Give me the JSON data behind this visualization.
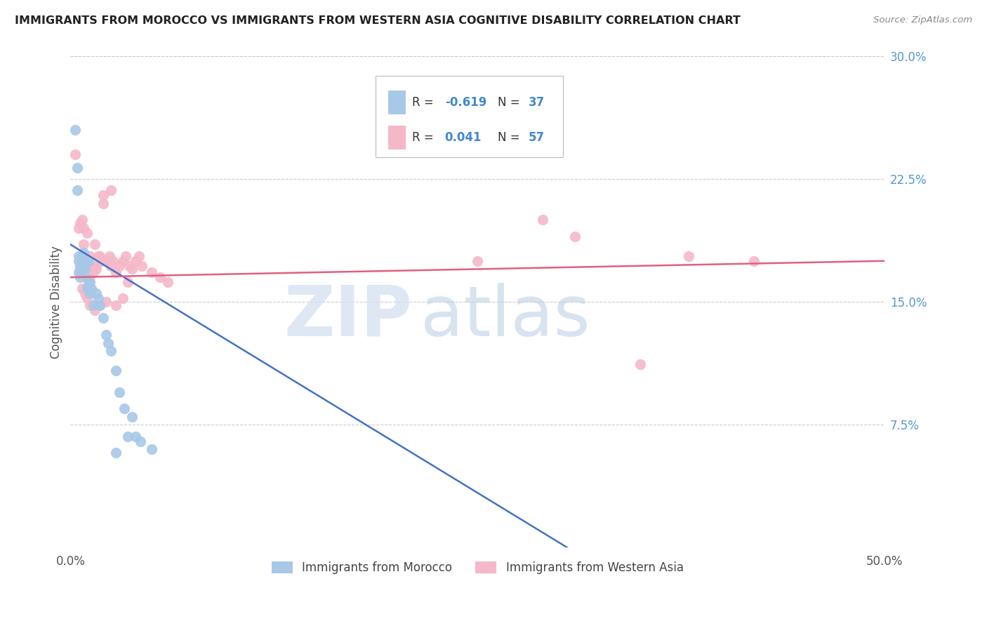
{
  "title": "IMMIGRANTS FROM MOROCCO VS IMMIGRANTS FROM WESTERN ASIA COGNITIVE DISABILITY CORRELATION CHART",
  "source": "Source: ZipAtlas.com",
  "ylabel": "Cognitive Disability",
  "xlim": [
    0.0,
    0.5
  ],
  "ylim": [
    0.0,
    0.3
  ],
  "xticks": [
    0.0,
    0.1,
    0.2,
    0.3,
    0.4,
    0.5
  ],
  "xticklabels": [
    "0.0%",
    "",
    "",
    "",
    "",
    "50.0%"
  ],
  "yticks_right": [
    0.075,
    0.15,
    0.225,
    0.3
  ],
  "ytick_labels_right": [
    "7.5%",
    "15.0%",
    "22.5%",
    "30.0%"
  ],
  "blue_color": "#a8c8e8",
  "pink_color": "#f4b8c8",
  "line_blue": "#4472c4",
  "line_pink": "#e06080",
  "watermark_zip": "ZIP",
  "watermark_atlas": "atlas",
  "morocco_scatter_x": [
    0.003,
    0.004,
    0.004,
    0.005,
    0.005,
    0.005,
    0.006,
    0.006,
    0.007,
    0.007,
    0.008,
    0.009,
    0.009,
    0.01,
    0.01,
    0.011,
    0.011,
    0.012,
    0.012,
    0.013,
    0.014,
    0.016,
    0.017,
    0.018,
    0.02,
    0.022,
    0.023,
    0.025,
    0.028,
    0.03,
    0.033,
    0.038,
    0.04,
    0.043,
    0.05,
    0.028,
    0.035
  ],
  "morocco_scatter_y": [
    0.255,
    0.232,
    0.218,
    0.175,
    0.168,
    0.178,
    0.172,
    0.165,
    0.178,
    0.168,
    0.18,
    0.174,
    0.17,
    0.164,
    0.158,
    0.175,
    0.16,
    0.162,
    0.155,
    0.158,
    0.148,
    0.155,
    0.152,
    0.148,
    0.14,
    0.13,
    0.125,
    0.12,
    0.108,
    0.095,
    0.085,
    0.08,
    0.068,
    0.065,
    0.06,
    0.058,
    0.068
  ],
  "western_asia_scatter_x": [
    0.003,
    0.005,
    0.006,
    0.007,
    0.007,
    0.008,
    0.009,
    0.01,
    0.01,
    0.011,
    0.012,
    0.013,
    0.014,
    0.015,
    0.016,
    0.017,
    0.018,
    0.019,
    0.02,
    0.022,
    0.024,
    0.025,
    0.026,
    0.028,
    0.03,
    0.032,
    0.034,
    0.036,
    0.038,
    0.04,
    0.042,
    0.044,
    0.05,
    0.055,
    0.06,
    0.006,
    0.008,
    0.012,
    0.015,
    0.02,
    0.025,
    0.035,
    0.38,
    0.42,
    0.007,
    0.009,
    0.01,
    0.012,
    0.015,
    0.018,
    0.022,
    0.028,
    0.032,
    0.25,
    0.29,
    0.31,
    0.35
  ],
  "western_asia_scatter_y": [
    0.24,
    0.195,
    0.198,
    0.2,
    0.175,
    0.195,
    0.175,
    0.192,
    0.172,
    0.175,
    0.178,
    0.172,
    0.168,
    0.172,
    0.17,
    0.178,
    0.178,
    0.175,
    0.21,
    0.175,
    0.178,
    0.172,
    0.175,
    0.168,
    0.172,
    0.175,
    0.178,
    0.172,
    0.17,
    0.175,
    0.178,
    0.172,
    0.168,
    0.165,
    0.162,
    0.17,
    0.185,
    0.165,
    0.185,
    0.215,
    0.218,
    0.162,
    0.178,
    0.175,
    0.158,
    0.155,
    0.152,
    0.148,
    0.145,
    0.148,
    0.15,
    0.148,
    0.152,
    0.175,
    0.2,
    0.19,
    0.112
  ],
  "blue_line_x": [
    0.0,
    0.5
  ],
  "blue_line_y": [
    0.185,
    -0.118
  ],
  "pink_line_x": [
    0.0,
    0.5
  ],
  "pink_line_y": [
    0.165,
    0.175
  ]
}
